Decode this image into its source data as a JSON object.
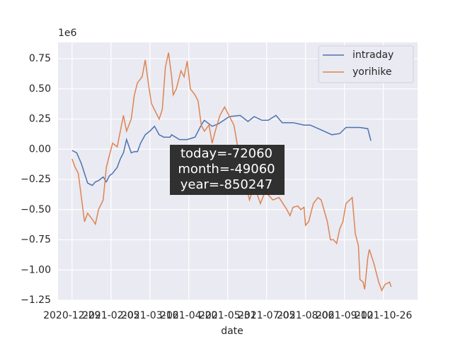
{
  "chart_data": {
    "type": "line",
    "x_label": "date",
    "offset_label": "1e6",
    "xlim": [
      -9,
      222
    ],
    "ylim": [
      -1.25,
      0.885
    ],
    "xticks": [
      {
        "value": 0,
        "label": "2020-12-29"
      },
      {
        "value": 25,
        "label": "2021-02-05"
      },
      {
        "value": 50,
        "label": "2021-03-16"
      },
      {
        "value": 75,
        "label": "2021-04-20"
      },
      {
        "value": 100,
        "label": "2021-05-31"
      },
      {
        "value": 125,
        "label": "2021-07-05"
      },
      {
        "value": 150,
        "label": "2021-08-06"
      },
      {
        "value": 175,
        "label": "2021-09-10"
      },
      {
        "value": 200,
        "label": "2021-10-26"
      }
    ],
    "yticks": [
      {
        "value": 0.75,
        "label": "0.75"
      },
      {
        "value": 0.5,
        "label": "0.50"
      },
      {
        "value": 0.25,
        "label": "0.25"
      },
      {
        "value": 0,
        "label": "0.00"
      },
      {
        "value": -0.25,
        "label": "−0.25"
      },
      {
        "value": -0.5,
        "label": "−0.50"
      },
      {
        "value": -0.75,
        "label": "−0.75"
      },
      {
        "value": -1,
        "label": "−1.00"
      },
      {
        "value": -1.25,
        "label": "−1.25"
      }
    ],
    "grid": true,
    "legend": "upper right",
    "annotation": [
      "today=-72060",
      "month=-49060",
      "year=-850247"
    ],
    "series": [
      {
        "name": "intraday",
        "color": "#4c72b0",
        "x": [
          0,
          3,
          6,
          8,
          10,
          13,
          15,
          17,
          20,
          22,
          24,
          26,
          29,
          31,
          33,
          35,
          38,
          40,
          42,
          44,
          47,
          50,
          53,
          56,
          59,
          63,
          64,
          69,
          74,
          79,
          83,
          85,
          90,
          94,
          101,
          108,
          113,
          117,
          122,
          126,
          131,
          135,
          142,
          149,
          153,
          160,
          167,
          172,
          176,
          185,
          190,
          192
        ],
        "values": [
          -0.01,
          -0.03,
          -0.12,
          -0.2,
          -0.28,
          -0.3,
          -0.27,
          -0.26,
          -0.23,
          -0.27,
          -0.22,
          -0.2,
          -0.15,
          -0.08,
          -0.03,
          0.08,
          -0.03,
          -0.02,
          -0.02,
          0.05,
          0.12,
          0.15,
          0.19,
          0.12,
          0.1,
          0.1,
          0.12,
          0.08,
          0.08,
          0.1,
          0.2,
          0.24,
          0.19,
          0.21,
          0.27,
          0.28,
          0.23,
          0.27,
          0.24,
          0.24,
          0.28,
          0.22,
          0.22,
          0.2,
          0.2,
          0.16,
          0.12,
          0.13,
          0.18,
          0.18,
          0.17,
          0.07
        ]
      },
      {
        "name": "yorihike",
        "color": "#dd8452",
        "x": [
          0,
          2,
          4,
          6,
          8,
          10,
          13,
          15,
          17,
          20,
          22,
          24,
          26,
          29,
          31,
          33,
          35,
          38,
          40,
          42,
          45,
          47,
          49,
          51,
          54,
          56,
          58,
          60,
          62,
          64,
          65,
          67,
          70,
          72,
          74,
          76,
          79,
          81,
          83,
          85,
          88,
          90,
          92,
          95,
          98,
          104,
          108,
          114,
          117,
          121,
          124,
          129,
          133,
          138,
          140,
          142,
          145,
          147,
          149,
          150,
          152,
          155,
          158,
          160,
          164,
          166,
          168,
          170,
          172,
          174,
          176,
          180,
          182,
          184,
          185,
          187,
          188,
          190,
          191,
          194,
          197,
          199,
          201,
          204,
          205
        ],
        "values": [
          -0.08,
          -0.15,
          -0.2,
          -0.4,
          -0.6,
          -0.53,
          -0.58,
          -0.62,
          -0.5,
          -0.42,
          -0.15,
          -0.05,
          0.05,
          0.02,
          0.15,
          0.28,
          0.15,
          0.25,
          0.45,
          0.55,
          0.6,
          0.74,
          0.55,
          0.38,
          0.3,
          0.25,
          0.33,
          0.68,
          0.8,
          0.6,
          0.45,
          0.5,
          0.65,
          0.6,
          0.73,
          0.5,
          0.45,
          0.4,
          0.2,
          0.15,
          0.2,
          0.05,
          0.15,
          0.28,
          0.35,
          0.2,
          -0.1,
          -0.42,
          -0.3,
          -0.45,
          -0.35,
          -0.42,
          -0.4,
          -0.5,
          -0.55,
          -0.48,
          -0.47,
          -0.5,
          -0.48,
          -0.63,
          -0.6,
          -0.45,
          -0.4,
          -0.42,
          -0.6,
          -0.75,
          -0.75,
          -0.78,
          -0.66,
          -0.6,
          -0.45,
          -0.4,
          -0.7,
          -0.8,
          -1.08,
          -1.1,
          -1.16,
          -0.9,
          -0.83,
          -0.95,
          -1.1,
          -1.17,
          -1.12,
          -1.1,
          -1.14
        ]
      }
    ]
  }
}
